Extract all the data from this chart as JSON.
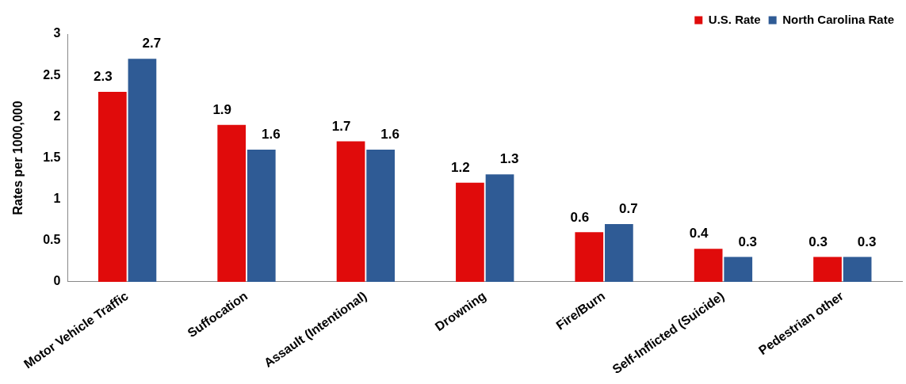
{
  "chart_data": {
    "type": "bar",
    "ylabel": "Rates per 1000,000",
    "categories": [
      "Motor Vehicle Traffic",
      "Suffocation",
      "Assault (Intentional)",
      "Drowning",
      "Fire/Burn",
      "Self-Inflicted (Suicide)",
      "Pedestrian other"
    ],
    "series": [
      {
        "name": "U.S. Rate",
        "color": "#e00b0b",
        "values": [
          2.3,
          1.9,
          1.7,
          1.2,
          0.6,
          0.4,
          0.3
        ]
      },
      {
        "name": "North Carolina Rate",
        "color": "#2f5b95",
        "values": [
          2.7,
          1.6,
          1.6,
          1.3,
          0.7,
          0.3,
          0.3
        ]
      }
    ],
    "ylim": [
      0,
      3
    ],
    "yticks": [
      0,
      0.5,
      1,
      1.5,
      2,
      2.5,
      3
    ],
    "grid": false,
    "legend": "top right",
    "data_labels": true
  }
}
